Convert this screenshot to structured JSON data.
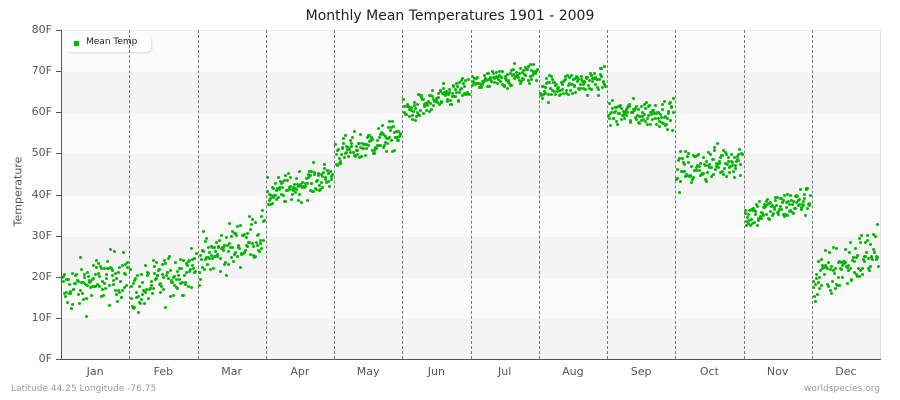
{
  "chart_data": {
    "type": "scatter",
    "title": "Monthly Mean Temperatures 1901 - 2009",
    "xlabel": "",
    "ylabel": "Temperature",
    "ylim": [
      0,
      80
    ],
    "yticks": [
      "0F",
      "10F",
      "20F",
      "30F",
      "40F",
      "50F",
      "60F",
      "70F",
      "80F"
    ],
    "categories": [
      "Jan",
      "Feb",
      "Mar",
      "Apr",
      "May",
      "Jun",
      "Jul",
      "Aug",
      "Sep",
      "Oct",
      "Nov",
      "Dec"
    ],
    "legend": [
      {
        "label": "Mean Temp",
        "color": "#00b800"
      }
    ],
    "legend_position": "top-left",
    "grid": "alternating horizontal bands, dashed vertical month separators",
    "series": [
      {
        "name": "Mean Temp",
        "points_per_month": 109,
        "month_stats": [
          {
            "month": "Jan",
            "mean": 19,
            "min": 7,
            "max": 31,
            "trend_start": 17,
            "trend_end": 21
          },
          {
            "month": "Feb",
            "mean": 19,
            "min": 7,
            "max": 29,
            "trend_start": 16,
            "trend_end": 23
          },
          {
            "month": "Mar",
            "mean": 28,
            "min": 18,
            "max": 40,
            "trend_start": 24,
            "trend_end": 31
          },
          {
            "month": "Apr",
            "mean": 42,
            "min": 36,
            "max": 50,
            "trend_start": 40,
            "trend_end": 45
          },
          {
            "month": "May",
            "mean": 53,
            "min": 46,
            "max": 60,
            "trend_start": 50,
            "trend_end": 55
          },
          {
            "month": "Jun",
            "mean": 63,
            "min": 57,
            "max": 69,
            "trend_start": 60,
            "trend_end": 66
          },
          {
            "month": "Jul",
            "mean": 69,
            "min": 64,
            "max": 74,
            "trend_start": 67,
            "trend_end": 70
          },
          {
            "month": "Aug",
            "mean": 67,
            "min": 61,
            "max": 73,
            "trend_start": 66,
            "trend_end": 68
          },
          {
            "month": "Sep",
            "mean": 60,
            "min": 54,
            "max": 67,
            "trend_start": 60,
            "trend_end": 60
          },
          {
            "month": "Oct",
            "mean": 48,
            "min": 39,
            "max": 56,
            "trend_start": 46,
            "trend_end": 49
          },
          {
            "month": "Nov",
            "mean": 37,
            "min": 30,
            "max": 44,
            "trend_start": 35,
            "trend_end": 39
          },
          {
            "month": "Dec",
            "mean": 23,
            "min": 9,
            "max": 34,
            "trend_start": 19,
            "trend_end": 27
          }
        ]
      }
    ]
  },
  "footer": {
    "location": "Latitude 44.25 Longitude -76.75",
    "source": "worldspecies.org"
  },
  "colors": {
    "dot": "#00b800",
    "band_light": "#fbfbfb",
    "band_dark": "#f4f4f4"
  }
}
